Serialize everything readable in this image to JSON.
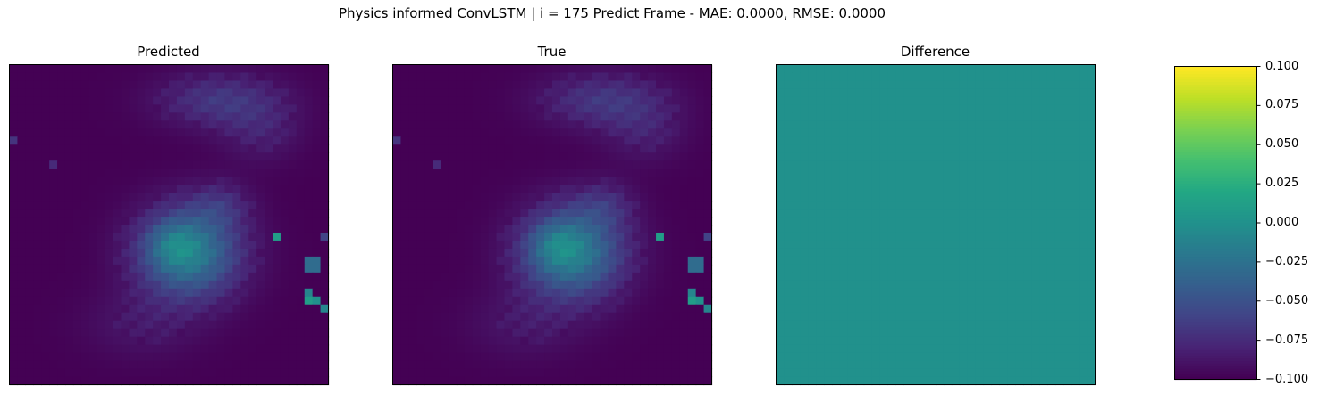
{
  "figure": {
    "suptitle": "Physics informed ConvLSTM | i = 175 Predict Frame - MAE: 0.0000, RMSE: 0.0000"
  },
  "chart_data": [
    {
      "type": "heatmap",
      "title": "Predicted",
      "grid_size": [
        40,
        40
      ],
      "colormap": "viridis",
      "vmin": 0,
      "vmax": 1,
      "background_value": 0.0,
      "axes_ticks": false,
      "blobs": [
        {
          "cx": 22,
          "cy": 23,
          "sx": 4.5,
          "sy": 4.0,
          "amp": 0.42
        },
        {
          "cx": 20,
          "cy": 22,
          "sx": 2.2,
          "sy": 2.0,
          "amp": 0.12
        },
        {
          "cx": 26,
          "cy": 17,
          "sx": 2.6,
          "sy": 2.0,
          "amp": 0.1
        },
        {
          "cx": 26,
          "cy": 4,
          "sx": 5.5,
          "sy": 2.4,
          "amp": 0.16
        },
        {
          "cx": 31,
          "cy": 8,
          "sx": 3.5,
          "sy": 2.6,
          "amp": 0.08
        },
        {
          "cx": 16,
          "cy": 32,
          "sx": 5.0,
          "sy": 3.0,
          "amp": 0.06
        }
      ],
      "hot_pixels": [
        {
          "col": 33,
          "row": 21,
          "value": 0.55
        },
        {
          "col": 37,
          "row": 24,
          "value": 0.35
        },
        {
          "col": 38,
          "row": 24,
          "value": 0.35
        },
        {
          "col": 37,
          "row": 25,
          "value": 0.35
        },
        {
          "col": 38,
          "row": 25,
          "value": 0.35
        },
        {
          "col": 37,
          "row": 28,
          "value": 0.45
        },
        {
          "col": 37,
          "row": 29,
          "value": 0.55
        },
        {
          "col": 38,
          "row": 29,
          "value": 0.5
        },
        {
          "col": 39,
          "row": 30,
          "value": 0.45
        },
        {
          "col": 39,
          "row": 21,
          "value": 0.2
        },
        {
          "col": 0,
          "row": 9,
          "value": 0.15
        },
        {
          "col": 5,
          "row": 12,
          "value": 0.12
        }
      ]
    },
    {
      "type": "heatmap",
      "title": "True",
      "grid_size": [
        40,
        40
      ],
      "colormap": "viridis",
      "vmin": 0,
      "vmax": 1,
      "same_as_panel": 0,
      "axes_ticks": false
    },
    {
      "type": "heatmap",
      "title": "Difference",
      "grid_size": [
        40,
        40
      ],
      "colormap": "viridis",
      "vmin": -0.1,
      "vmax": 0.1,
      "uniform_value": 0.0,
      "axes_ticks": false
    }
  ],
  "colorbar": {
    "colormap": "viridis",
    "vmin": -0.1,
    "vmax": 0.1,
    "tick_labels": [
      "0.100",
      "0.075",
      "0.050",
      "0.025",
      "0.000",
      "−0.025",
      "−0.050",
      "−0.075",
      "−0.100"
    ]
  }
}
